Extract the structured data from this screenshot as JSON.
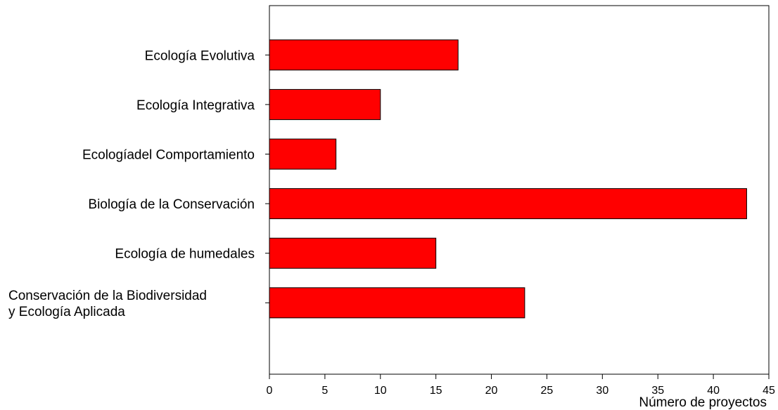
{
  "chart_data": {
    "type": "bar",
    "orientation": "horizontal",
    "categories": [
      "Ecología Evolutiva",
      "Ecología Integrativa",
      "Ecologíadel Comportamiento",
      "Biología de la Conservación",
      "Ecología de humedales",
      "Conservación de la Biodiversidad\ny Ecología Aplicada"
    ],
    "values": [
      17,
      10,
      6,
      43,
      15,
      23
    ],
    "xlabel": "Número de proyectos",
    "ylabel": "",
    "xlim": [
      0,
      45
    ],
    "xticks": [
      0,
      5,
      10,
      15,
      20,
      25,
      30,
      35,
      40,
      45
    ],
    "bar_color": "#ff0000",
    "grid": false,
    "legend": "none"
  }
}
